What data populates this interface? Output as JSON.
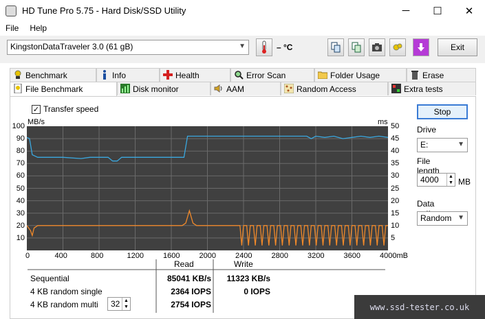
{
  "window": {
    "title": "HD Tune Pro 5.75 - Hard Disk/SSD Utility",
    "minimize": "─",
    "maximize": "☐",
    "close": "✕"
  },
  "menu": {
    "file": "File",
    "help": "Help"
  },
  "toolbar": {
    "drive": "KingstonDataTraveler 3.0 (61 gB)",
    "temperature": "– °C",
    "exit_label": "Exit"
  },
  "tabs": {
    "row1": [
      "Benchmark",
      "Info",
      "Health",
      "Error Scan",
      "Folder Usage",
      "Erase"
    ],
    "row2": [
      "File Benchmark",
      "Disk monitor",
      "AAM",
      "Random Access",
      "Extra tests"
    ],
    "active": "File Benchmark"
  },
  "options": {
    "transfer_speed_label": "Transfer speed",
    "transfer_speed_checked": true
  },
  "chart_data": {
    "type": "line",
    "left_unit": "MB/s",
    "right_unit": "ms",
    "left_ticks": [
      "100",
      "90",
      "80",
      "70",
      "60",
      "50",
      "40",
      "30",
      "20",
      "10"
    ],
    "right_ticks": [
      "50",
      "45",
      "40",
      "35",
      "30",
      "25",
      "20",
      "15",
      "10",
      "5"
    ],
    "x_ticks": [
      "0",
      "400",
      "800",
      "1200",
      "1600",
      "2000",
      "2400",
      "2800",
      "3200",
      "3600",
      "4000mB"
    ],
    "xlim": [
      0,
      4000
    ],
    "ylim_left": [
      0,
      100
    ],
    "ylim_right": [
      0,
      50
    ],
    "series": [
      {
        "color": "#3aa8e0",
        "axis": "left",
        "x": [
          0,
          30,
          60,
          120,
          200,
          400,
          600,
          700,
          800,
          900,
          950,
          1000,
          1050,
          1100,
          1200,
          1400,
          1500,
          1600,
          1700,
          1740,
          1780,
          1800,
          1900,
          2000,
          2100,
          2200,
          2400,
          2600,
          2800,
          3000,
          3100,
          3150,
          3200,
          3300,
          3400,
          3500,
          3600,
          3700,
          3800,
          3900,
          4000
        ],
        "y": [
          91,
          90,
          77,
          75,
          75,
          75,
          74,
          75,
          75,
          75,
          72,
          72,
          75,
          75,
          75,
          75,
          75,
          75,
          75,
          75,
          92,
          92,
          92,
          92,
          92,
          92,
          92,
          92,
          92,
          92,
          92,
          90,
          92,
          91,
          92,
          90,
          91,
          92,
          91,
          92,
          91
        ]
      },
      {
        "color": "#f0892a",
        "axis": "right",
        "x": [
          0,
          40,
          60,
          80,
          120,
          200,
          400,
          800,
          1200,
          1600,
          1720,
          1760,
          1800,
          1840,
          1880,
          1920,
          2000,
          2200,
          2300,
          2330
        ],
        "y": [
          10,
          8,
          6,
          9,
          10,
          10,
          10,
          10,
          10,
          10,
          10,
          11,
          16,
          11,
          10,
          10,
          10,
          10,
          10,
          10
        ]
      }
    ]
  },
  "results": {
    "read_header": "Read",
    "write_header": "Write",
    "rows": [
      {
        "label": "Sequential",
        "read": "85041 KB/s",
        "write": "11323 KB/s"
      },
      {
        "label": "4 KB random single",
        "read": "2364 IOPS",
        "write": "0 IOPS"
      },
      {
        "label": "4 KB random multi",
        "read": "2754 IOPS",
        "write": ""
      }
    ],
    "multi_queue": "32"
  },
  "settings": {
    "stop_label": "Stop",
    "drive_label": "Drive",
    "drive_value": "E:",
    "file_length_label": "File length",
    "file_length_value": "4000",
    "file_length_unit": "MB",
    "pattern_label": "Data pattern",
    "pattern_value": "Random"
  },
  "watermark": "www.ssd-tester.co.uk"
}
